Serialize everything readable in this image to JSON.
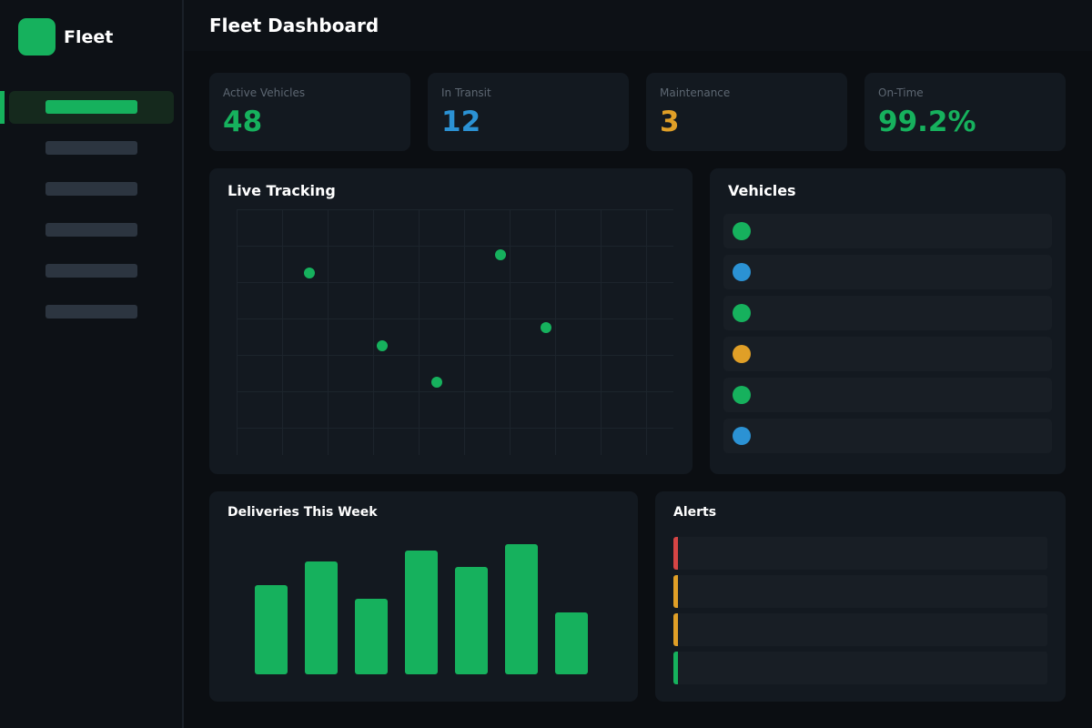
{
  "app": {
    "name": "Fleet",
    "logo_color": "#16b15d"
  },
  "sidebar": {
    "items": [
      {
        "label": "",
        "active": true
      },
      {
        "label": "",
        "active": false
      },
      {
        "label": "",
        "active": false
      },
      {
        "label": "",
        "active": false
      },
      {
        "label": "",
        "active": false
      },
      {
        "label": "",
        "active": false
      }
    ]
  },
  "header": {
    "title": "Fleet Dashboard"
  },
  "stats": [
    {
      "label": "Active Vehicles",
      "value": "48",
      "color": "#16b15d"
    },
    {
      "label": "In Transit",
      "value": "12",
      "color": "#2b92d4"
    },
    {
      "label": "Maintenance",
      "value": "3",
      "color": "#e09f27"
    },
    {
      "label": "On-Time",
      "value": "99.2%",
      "color": "#16b15d"
    }
  ],
  "live_tracking": {
    "title": "Live Tracking",
    "markers": [
      "vehicle-marker",
      "vehicle-marker",
      "vehicle-marker",
      "vehicle-marker",
      "vehicle-marker"
    ],
    "marker_color": "#16b15d"
  },
  "vehicles": {
    "title": "Vehicles",
    "items": [
      {
        "status_color": "#16b15d"
      },
      {
        "status_color": "#2b92d4"
      },
      {
        "status_color": "#16b15d"
      },
      {
        "status_color": "#e09f27"
      },
      {
        "status_color": "#16b15d"
      },
      {
        "status_color": "#2b92d4"
      }
    ]
  },
  "deliveries": {
    "title": "Deliveries This Week",
    "bar_color": "#16b15d"
  },
  "chart_data": {
    "type": "bar",
    "categories": [
      "",
      "",
      "",
      "",
      "",
      "",
      ""
    ],
    "values": [
      98,
      124,
      83,
      136,
      118,
      143,
      68
    ],
    "ylim": [
      0,
      150
    ],
    "title": "Deliveries This Week",
    "xlabel": "",
    "ylabel": "",
    "grid": false
  },
  "alerts": {
    "title": "Alerts",
    "items": [
      {
        "severity_color": "#d64545"
      },
      {
        "severity_color": "#e09f27"
      },
      {
        "severity_color": "#e09f27"
      },
      {
        "severity_color": "#16b15d"
      }
    ]
  }
}
